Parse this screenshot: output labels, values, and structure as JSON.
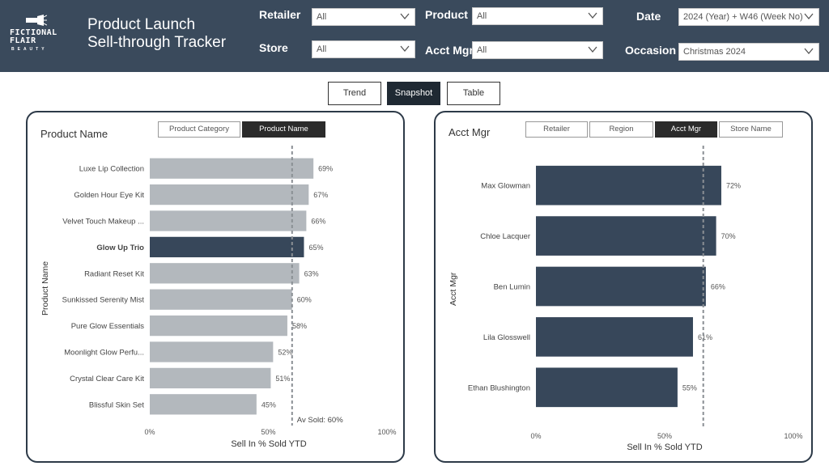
{
  "header": {
    "logo_brand_line1": "FICTIONAL",
    "logo_brand_line2": "FLAIR",
    "logo_sub": "BEAUTY",
    "title_line1": "Product Launch",
    "title_line2": "Sell-through Tracker"
  },
  "filters": {
    "retailer_label": "Retailer",
    "retailer_value": "All",
    "store_label": "Store",
    "store_value": "All",
    "product_label": "Product",
    "product_value": "All",
    "acct_mgr_label": "Acct Mgr",
    "acct_mgr_value": "All",
    "date_label": "Date",
    "date_value": "2024 (Year) + W46 (Week No)",
    "occasion_label": "Occasion",
    "occasion_value": "Christmas 2024"
  },
  "view_buttons": {
    "trend": "Trend",
    "snapshot": "Snapshot",
    "table": "Table",
    "active": "snapshot"
  },
  "left_panel": {
    "title": "Product Name",
    "tabs": [
      "Product Category",
      "Product Name"
    ],
    "active_tab": 1,
    "y_axis_label": "Product Name",
    "x_axis_label": "Sell In % Sold YTD"
  },
  "right_panel": {
    "title": "Acct Mgr",
    "tabs": [
      "Retailer",
      "Region",
      "Acct Mgr",
      "Store Name"
    ],
    "active_tab": 2,
    "y_axis_label": "Acct Mgr",
    "x_axis_label": "Sell In % Sold YTD"
  },
  "colors": {
    "header_bg": "#3a4a5c",
    "bar_grey": "#b3b8bd",
    "bar_dark": "#37475a",
    "ref_line": "#8a8f94"
  },
  "chart_data": [
    {
      "type": "bar",
      "orientation": "horizontal",
      "categories": [
        "Luxe Lip Collection",
        "Golden Hour Eye Kit",
        "Velvet Touch Makeup ...",
        "Glow Up Trio",
        "Radiant Reset Kit",
        "Sunkissed Serenity Mist",
        "Pure Glow Essentials",
        "Moonlight Glow Perfu...",
        "Crystal Clear Care Kit",
        "Blissful Skin Set"
      ],
      "values": [
        69,
        67,
        66,
        65,
        63,
        60,
        58,
        52,
        51,
        45
      ],
      "value_labels": [
        "69%",
        "67%",
        "66%",
        "65%",
        "63%",
        "60%",
        "58%",
        "52%",
        "51%",
        "45%"
      ],
      "highlighted": "Glow Up Trio",
      "reference_line": {
        "value": 60,
        "label": "Av Sold: 60%"
      },
      "xlim": [
        0,
        100
      ],
      "xticks": [
        "0%",
        "50%",
        "100%"
      ],
      "xlabel": "Sell In % Sold YTD",
      "ylabel": "Product Name"
    },
    {
      "type": "bar",
      "orientation": "horizontal",
      "categories": [
        "Max Glowman",
        "Chloe Lacquer",
        "Ben Lumin",
        "Lila Glosswell",
        "Ethan Blushington"
      ],
      "values": [
        72,
        70,
        66,
        61,
        55
      ],
      "value_labels": [
        "72%",
        "70%",
        "66%",
        "61%",
        "55%"
      ],
      "reference_line": {
        "value": 65
      },
      "xlim": [
        0,
        100
      ],
      "xticks": [
        "0%",
        "50%",
        "100%"
      ],
      "xlabel": "Sell In % Sold YTD",
      "ylabel": "Acct Mgr"
    }
  ]
}
